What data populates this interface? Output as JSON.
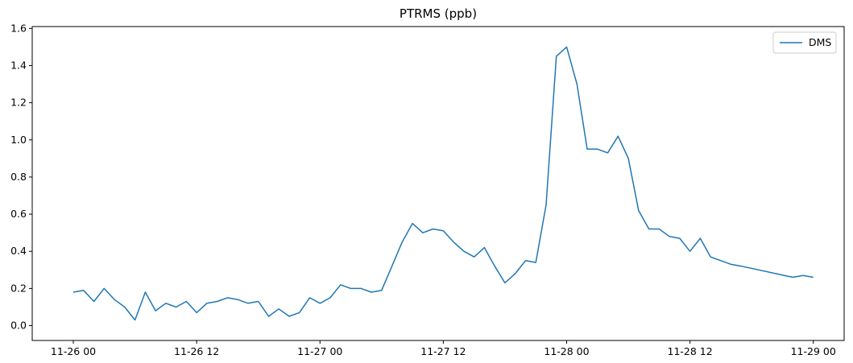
{
  "chart_data": {
    "type": "line",
    "title": "PTRMS (ppb)",
    "x": [
      "11-26 00",
      "11-26 01",
      "11-26 02",
      "11-26 03",
      "11-26 04",
      "11-26 05",
      "11-26 06",
      "11-26 07",
      "11-26 08",
      "11-26 09",
      "11-26 10",
      "11-26 11",
      "11-26 12",
      "11-26 13",
      "11-26 14",
      "11-26 15",
      "11-26 16",
      "11-26 17",
      "11-26 18",
      "11-26 19",
      "11-26 20",
      "11-26 21",
      "11-26 22",
      "11-26 23",
      "11-27 00",
      "11-27 01",
      "11-27 02",
      "11-27 03",
      "11-27 04",
      "11-27 05",
      "11-27 06",
      "11-27 07",
      "11-27 08",
      "11-27 09",
      "11-27 10",
      "11-27 11",
      "11-27 12",
      "11-27 13",
      "11-27 14",
      "11-27 15",
      "11-27 16",
      "11-27 17",
      "11-27 18",
      "11-27 19",
      "11-27 20",
      "11-27 21",
      "11-27 22",
      "11-27 23",
      "11-28 00",
      "11-28 01",
      "11-28 02",
      "11-28 03",
      "11-28 04",
      "11-28 05",
      "11-28 06",
      "11-28 07",
      "11-28 08",
      "11-28 09",
      "11-28 10",
      "11-28 11",
      "11-28 12",
      "11-28 13",
      "11-28 14",
      "11-28 15",
      "11-28 16",
      "11-28 17",
      "11-28 22",
      "11-28 23",
      "11-29 00"
    ],
    "series": [
      {
        "name": "DMS",
        "color": "#1f77b4",
        "values": [
          0.18,
          0.19,
          0.13,
          0.2,
          0.14,
          0.1,
          0.03,
          0.18,
          0.08,
          0.12,
          0.1,
          0.13,
          0.07,
          0.12,
          0.13,
          0.15,
          0.14,
          0.12,
          0.13,
          0.05,
          0.09,
          0.05,
          0.07,
          0.15,
          0.12,
          0.15,
          0.22,
          0.2,
          0.2,
          0.18,
          0.19,
          0.32,
          0.45,
          0.55,
          0.5,
          0.52,
          0.51,
          0.45,
          0.4,
          0.37,
          0.42,
          0.32,
          0.23,
          0.28,
          0.35,
          0.34,
          0.65,
          1.45,
          1.5,
          1.3,
          0.95,
          0.95,
          0.93,
          1.02,
          0.9,
          0.62,
          0.52,
          0.52,
          0.48,
          0.47,
          0.4,
          0.47,
          0.37,
          0.35,
          0.33,
          0.32,
          0.26,
          0.27,
          0.26
        ]
      }
    ],
    "xlim": [
      "11-25 20",
      "11-29 03"
    ],
    "xticks": [
      "11-26 00",
      "11-26 12",
      "11-27 00",
      "11-27 12",
      "11-28 00",
      "11-28 12",
      "11-29 00"
    ],
    "ylim": [
      -0.08,
      1.61
    ],
    "yticks": [
      {
        "value": 0,
        "label": "0.0"
      },
      0.2,
      0.4,
      0.6,
      0.8,
      {
        "value": 1,
        "label": "1.0"
      },
      1.2,
      1.4,
      1.6
    ],
    "grid": false,
    "legend": "upper right"
  }
}
